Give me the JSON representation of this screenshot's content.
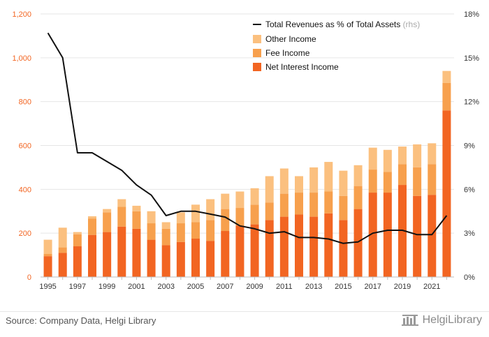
{
  "chart_data": {
    "type": "bar",
    "stacked": true,
    "years": [
      1995,
      1996,
      1997,
      1998,
      1999,
      2000,
      2001,
      2002,
      2003,
      2004,
      2005,
      2006,
      2007,
      2008,
      2009,
      2010,
      2011,
      2012,
      2013,
      2014,
      2015,
      2016,
      2017,
      2018,
      2019,
      2020,
      2021,
      2022
    ],
    "x_tick_labels": [
      "1995",
      "1997",
      "1999",
      "2001",
      "2003",
      "2005",
      "2007",
      "2009",
      "2011",
      "2013",
      "2015",
      "2017",
      "2019",
      "2021"
    ],
    "series": [
      {
        "name": "Net Interest Income",
        "color": "#f26522",
        "values": [
          95,
          110,
          140,
          192,
          205,
          230,
          220,
          170,
          145,
          160,
          175,
          165,
          210,
          235,
          240,
          260,
          275,
          285,
          275,
          290,
          260,
          310,
          385,
          385,
          420,
          370,
          375,
          760
        ]
      },
      {
        "name": "Fee Income",
        "color": "#f7a04d",
        "values": [
          10,
          25,
          55,
          75,
          90,
          90,
          80,
          75,
          75,
          85,
          75,
          95,
          100,
          80,
          90,
          80,
          105,
          100,
          110,
          100,
          110,
          105,
          105,
          95,
          95,
          130,
          140,
          125
        ]
      },
      {
        "name": "Other Income",
        "color": "#fbc07f",
        "values": [
          65,
          90,
          10,
          10,
          15,
          35,
          25,
          55,
          30,
          50,
          80,
          95,
          70,
          75,
          75,
          120,
          115,
          75,
          115,
          135,
          115,
          95,
          100,
          100,
          80,
          105,
          95,
          55
        ]
      }
    ],
    "line_series": {
      "name": "Total Revenues as % of Total Assets",
      "name_suffix": "(rhs)",
      "color": "#111111",
      "axis": "right",
      "values": [
        16.7,
        15.0,
        8.5,
        8.5,
        7.9,
        7.3,
        6.3,
        5.6,
        4.2,
        4.5,
        4.5,
        4.3,
        4.1,
        3.5,
        3.3,
        3.0,
        3.1,
        2.7,
        2.7,
        2.6,
        2.3,
        2.4,
        3.0,
        3.2,
        3.2,
        2.9,
        2.9,
        4.2
      ]
    },
    "y_left": {
      "min": 0,
      "max": 1200,
      "ticks": [
        0,
        200,
        400,
        600,
        800,
        1000,
        1200
      ],
      "tick_labels": [
        "0",
        "200",
        "400",
        "600",
        "800",
        "1,000",
        "1,200"
      ]
    },
    "y_right": {
      "min": 0,
      "max": 18,
      "ticks": [
        0,
        3,
        6,
        9,
        12,
        15,
        18
      ],
      "tick_labels": [
        "0%",
        "3%",
        "6%",
        "9%",
        "12%",
        "15%",
        "18%"
      ]
    },
    "grid": true,
    "legend_position": "top-right",
    "title": "",
    "xlabel": "",
    "ylabel": ""
  },
  "source": "Source: Company Data, Helgi Library",
  "brand": "HelgiLibrary",
  "colors": {
    "left_axis_text": "#f26522",
    "grid": "#e6e6e6",
    "axis_text": "#333333"
  }
}
